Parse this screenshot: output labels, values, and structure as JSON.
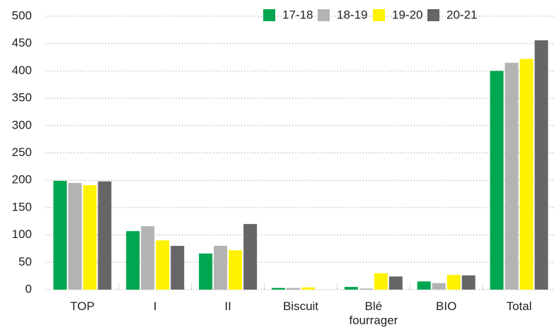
{
  "chart_data": {
    "type": "bar",
    "categories": [
      "TOP",
      "I",
      "II",
      "Biscuit",
      "Blé fourrager",
      "BIO",
      "Total"
    ],
    "series": [
      {
        "name": "17-18",
        "color": "#00a650",
        "values": [
          199,
          107,
          66,
          3,
          5,
          15,
          400
        ]
      },
      {
        "name": "18-19",
        "color": "#b3b3b3",
        "values": [
          195,
          116,
          80,
          3,
          2,
          12,
          415
        ]
      },
      {
        "name": "19-20",
        "color": "#fff200",
        "values": [
          191,
          90,
          72,
          4,
          30,
          27,
          422
        ]
      },
      {
        "name": "20-21",
        "color": "#666666",
        "values": [
          198,
          80,
          120,
          0,
          24,
          26,
          456
        ]
      }
    ],
    "ylim": [
      0,
      500
    ],
    "yticks": [
      0,
      50,
      100,
      150,
      200,
      250,
      300,
      350,
      400,
      450,
      500
    ],
    "grid": true,
    "legend": "top-right"
  }
}
